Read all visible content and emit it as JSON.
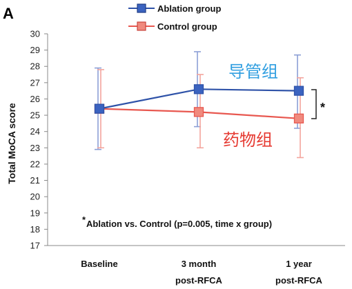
{
  "chart_data": {
    "type": "line",
    "panel_label": "A",
    "xlabel": "",
    "ylabel": "Total MoCA score",
    "ylim": [
      17,
      30
    ],
    "yticks": [
      17,
      18,
      19,
      20,
      21,
      22,
      23,
      24,
      25,
      26,
      27,
      28,
      29,
      30
    ],
    "categories": [
      {
        "line1": "Baseline",
        "line2": ""
      },
      {
        "line1": "3 month",
        "line2": "post-RFCA"
      },
      {
        "line1": "1 year",
        "line2": "post-RFCA"
      }
    ],
    "series": [
      {
        "name": "Ablation group",
        "color": "#2e52a8",
        "marker_fill": "#3b63c0",
        "error_color": "#8c9fd6",
        "values": [
          25.4,
          26.6,
          26.5
        ],
        "error_upper": [
          27.9,
          28.9,
          28.7
        ],
        "error_lower": [
          22.9,
          24.3,
          24.2
        ]
      },
      {
        "name": "Control group",
        "color": "#e8574f",
        "marker_fill": "#f08a7e",
        "error_color": "#f3a49c",
        "values": [
          25.4,
          25.2,
          24.8
        ],
        "error_upper": [
          27.8,
          27.5,
          27.3
        ],
        "error_lower": [
          23.0,
          23.0,
          22.4
        ]
      }
    ],
    "annotation": "Ablation vs. Control (p=0.005, time x group)",
    "annotation_marker": "*",
    "significance_marker": "*",
    "chinese_labels": [
      {
        "text": "导管组",
        "color": "#2f9ee0"
      },
      {
        "text": "药物组",
        "color": "#e63a32"
      }
    ],
    "legend_position": "top-center",
    "grid": false
  }
}
